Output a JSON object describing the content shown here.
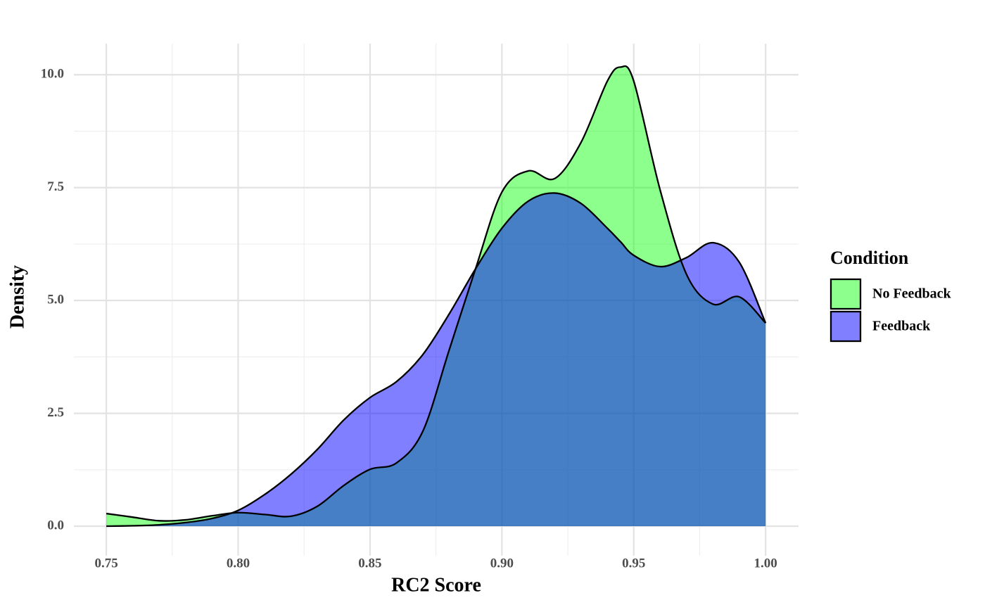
{
  "chart_data": {
    "type": "density",
    "x_label": "RC2 Score",
    "y_label": "Density",
    "legend_title": "Condition",
    "legend": "right",
    "x": [
      0.75,
      0.76,
      0.77,
      0.78,
      0.79,
      0.8,
      0.81,
      0.82,
      0.83,
      0.84,
      0.85,
      0.86,
      0.87,
      0.88,
      0.89,
      0.9,
      0.91,
      0.92,
      0.93,
      0.94,
      0.945,
      0.95,
      0.96,
      0.97,
      0.98,
      0.99,
      1.0
    ],
    "series": [
      {
        "name": "No Feedback",
        "color": "#00ff00",
        "opacity": 0.45,
        "values": [
          0.28,
          0.2,
          0.12,
          0.14,
          0.23,
          0.3,
          0.26,
          0.22,
          0.44,
          0.9,
          1.26,
          1.4,
          2.1,
          3.9,
          5.7,
          7.4,
          7.87,
          7.7,
          8.5,
          9.86,
          10.17,
          9.86,
          7.45,
          5.58,
          4.92,
          5.08,
          4.5
        ]
      },
      {
        "name": "Feedback",
        "color": "#0000ff",
        "opacity": 0.5,
        "values": [
          0,
          0.01,
          0.03,
          0.08,
          0.17,
          0.35,
          0.7,
          1.15,
          1.7,
          2.35,
          2.85,
          3.2,
          3.8,
          4.7,
          5.7,
          6.6,
          7.2,
          7.38,
          7.15,
          6.6,
          6.3,
          6.0,
          5.75,
          5.95,
          6.28,
          5.85,
          4.5
        ]
      }
    ],
    "xlim": [
      0.7377,
      1.0125
    ],
    "ylim": [
      -0.654,
      10.69
    ],
    "xticks": [
      0.75,
      {
        "value": 0.8,
        "label": "0.80"
      },
      0.85,
      {
        "value": 0.9,
        "label": "0.90"
      },
      0.95,
      {
        "value": 1.0,
        "label": "1.00"
      }
    ],
    "yticks": [
      {
        "value": 0,
        "label": "0.0"
      },
      2.5,
      {
        "value": 5,
        "label": "5.0"
      },
      7.5,
      {
        "value": 10,
        "label": "10.0"
      }
    ],
    "x_minor_grid": [
      0.775,
      0.825,
      0.875,
      0.925,
      0.975
    ],
    "y_minor_grid": [
      1.25,
      3.75,
      6.25,
      8.75
    ],
    "grid": true
  }
}
